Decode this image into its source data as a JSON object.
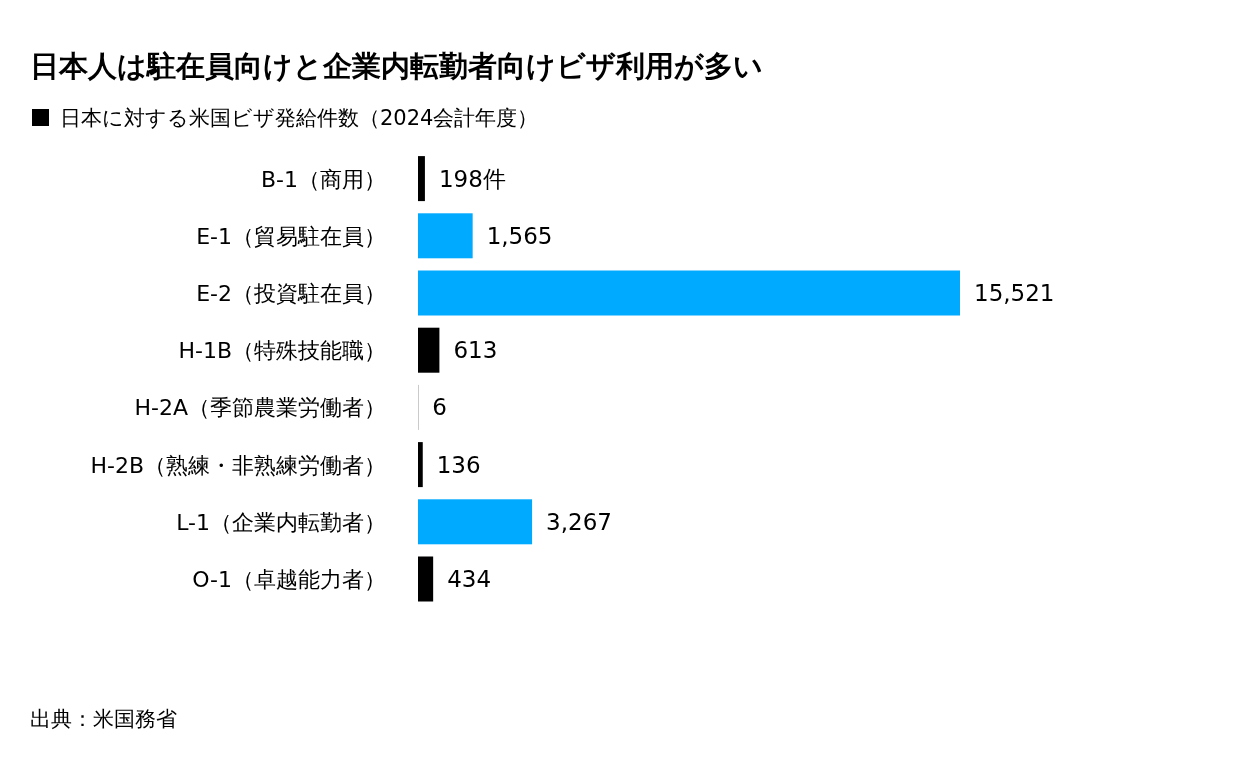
{
  "chart_data": {
    "type": "bar",
    "orientation": "horizontal",
    "title": "日本人は駐在員向けと企業内転勤者向けビザ利用が多い",
    "categories": [
      "B-1（商用）",
      "E-1（貿易駐在員）",
      "E-2（投資駐在員）",
      "H-1B（特殊技能職）",
      "H-2A（季節農業労働者）",
      "H-2B（熟練・非熟練労働者）",
      "L-1（企業内転勤者）",
      "O-1（卓越能力者）"
    ],
    "series": [
      {
        "name": "日本に対する米国ビザ発給件数（2024会計年度）",
        "values": [
          198,
          1565,
          15521,
          613,
          6,
          136,
          3267,
          434
        ],
        "value_labels": [
          "198件",
          "1,565",
          "15,521",
          "613",
          "6",
          "136",
          "3,267",
          "434"
        ]
      }
    ],
    "colors": [
      "#000000",
      "#00aaff",
      "#00aaff",
      "#000000",
      "#000000",
      "#000000",
      "#00aaff",
      "#000000"
    ],
    "legend": "top left",
    "tick_labels": "y",
    "annotations": [
      "出典：米国務省"
    ]
  }
}
